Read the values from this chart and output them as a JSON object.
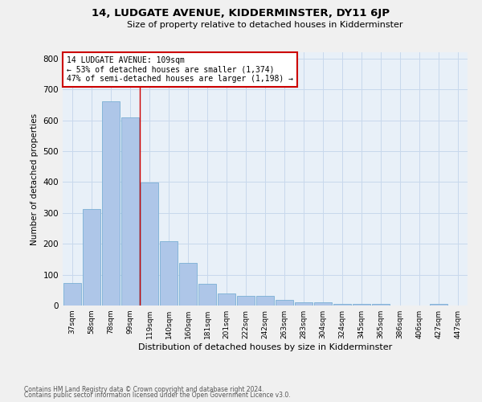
{
  "title": "14, LUDGATE AVENUE, KIDDERMINSTER, DY11 6JP",
  "subtitle": "Size of property relative to detached houses in Kidderminster",
  "xlabel": "Distribution of detached houses by size in Kidderminster",
  "ylabel": "Number of detached properties",
  "categories": [
    "37sqm",
    "58sqm",
    "78sqm",
    "99sqm",
    "119sqm",
    "140sqm",
    "160sqm",
    "181sqm",
    "201sqm",
    "222sqm",
    "242sqm",
    "263sqm",
    "283sqm",
    "304sqm",
    "324sqm",
    "345sqm",
    "365sqm",
    "386sqm",
    "406sqm",
    "427sqm",
    "447sqm"
  ],
  "values": [
    72,
    312,
    660,
    610,
    398,
    208,
    138,
    70,
    40,
    32,
    32,
    18,
    10,
    10,
    5,
    5,
    5,
    0,
    0,
    5,
    0
  ],
  "bar_color": "#aec6e8",
  "bar_edge_color": "#7aafd4",
  "property_label": "14 LUDGATE AVENUE: 109sqm",
  "annotation_line1": "← 53% of detached houses are smaller (1,374)",
  "annotation_line2": "47% of semi-detached houses are larger (1,198) →",
  "annotation_box_color": "#ffffff",
  "annotation_box_edge": "#cc0000",
  "vline_color": "#cc0000",
  "vline_x": 3.5,
  "ylim": [
    0,
    820
  ],
  "yticks": [
    0,
    100,
    200,
    300,
    400,
    500,
    600,
    700,
    800
  ],
  "grid_color": "#c8d8ec",
  "bg_color": "#e8f0f8",
  "fig_bg_color": "#f0f0f0",
  "footnote1": "Contains HM Land Registry data © Crown copyright and database right 2024.",
  "footnote2": "Contains public sector information licensed under the Open Government Licence v3.0."
}
